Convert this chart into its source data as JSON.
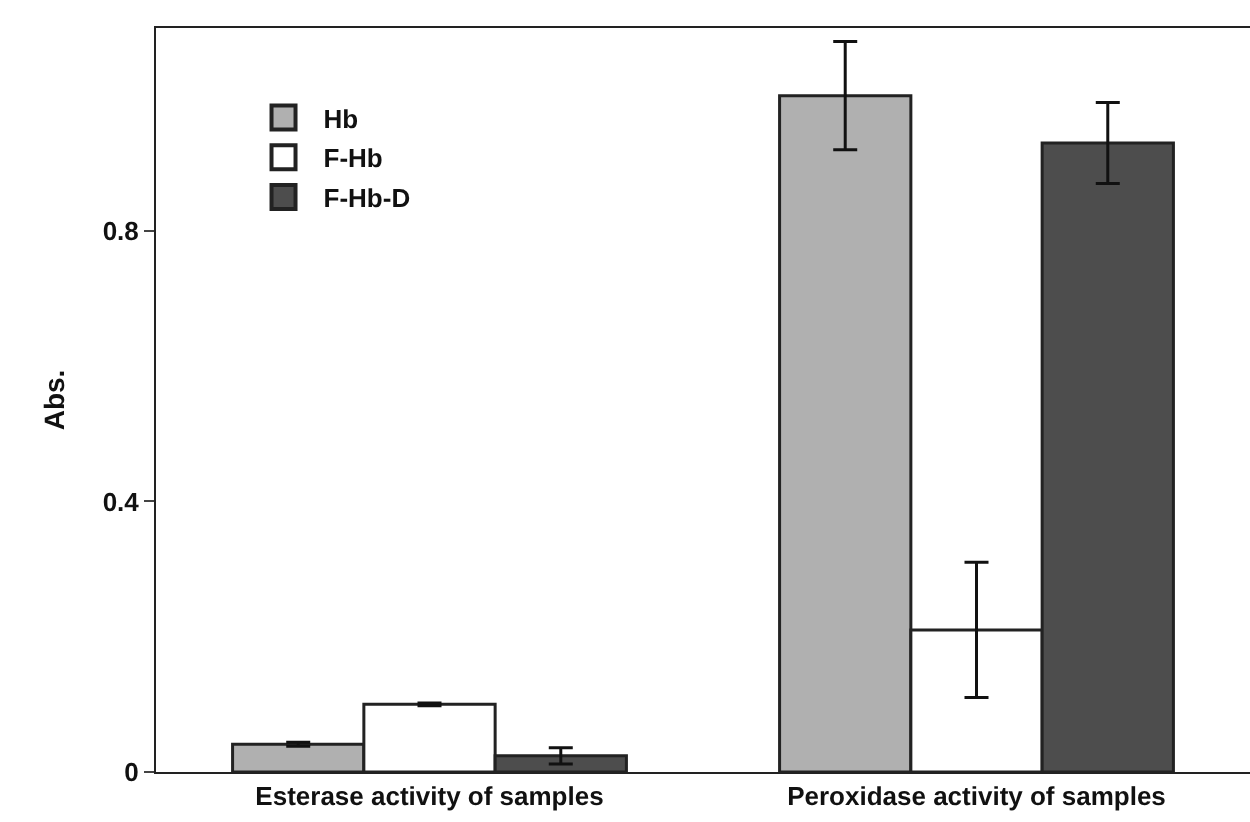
{
  "chart_data": {
    "type": "bar",
    "ylabel": "Abs.",
    "categories": [
      "Esterase activity of samples",
      "Peroxidase activity of samples"
    ],
    "series": [
      {
        "name": "Hb",
        "color": "#b0b0b0",
        "values": [
          0.041,
          1.0
        ],
        "errors": [
          0.003,
          0.08
        ]
      },
      {
        "name": "F-Hb",
        "color": "#ffffff",
        "values": [
          0.1,
          0.21
        ],
        "errors": [
          0.002,
          0.1
        ]
      },
      {
        "name": "F-Hb-D",
        "color": "#4d4d4d",
        "values": [
          0.024,
          0.93
        ],
        "errors": [
          0.012,
          0.06
        ]
      }
    ],
    "ylim": [
      0,
      1.1
    ],
    "yticks": [
      0,
      0.4,
      0.8
    ],
    "legend": "top left"
  }
}
